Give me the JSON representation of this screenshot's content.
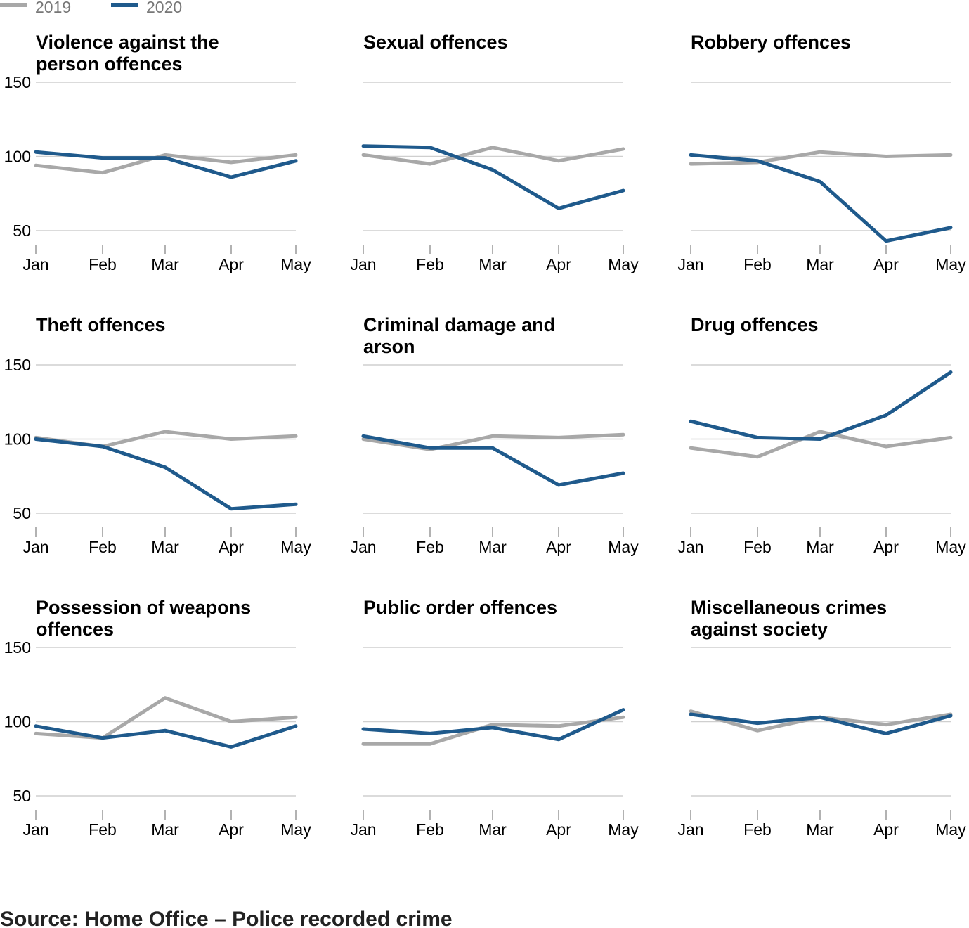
{
  "legend": [
    {
      "label": "2019",
      "color": "#a8a8a8"
    },
    {
      "label": "2020",
      "color": "#1f5a8c"
    }
  ],
  "source": "Source: Home Office – Police recorded crime",
  "chart_data": {
    "type": "line",
    "layout": "small-multiples",
    "x": [
      "Jan",
      "Feb",
      "Mar",
      "Apr",
      "May"
    ],
    "yticks": [
      50,
      100,
      150
    ],
    "ylim": [
      50,
      150
    ],
    "grid": true,
    "legend_position": "top-left",
    "panels": [
      {
        "title": [
          "Violence against the",
          "person offences"
        ],
        "show_yticks": true,
        "series": [
          {
            "name": "2019",
            "values": [
              94,
              89,
              101,
              96,
              101
            ]
          },
          {
            "name": "2020",
            "values": [
              103,
              99,
              99,
              86,
              97
            ]
          }
        ]
      },
      {
        "title": [
          "Sexual offences"
        ],
        "show_yticks": false,
        "series": [
          {
            "name": "2019",
            "values": [
              101,
              95,
              106,
              97,
              105
            ]
          },
          {
            "name": "2020",
            "values": [
              107,
              106,
              91,
              65,
              77
            ]
          }
        ]
      },
      {
        "title": [
          "Robbery offences"
        ],
        "show_yticks": false,
        "series": [
          {
            "name": "2019",
            "values": [
              95,
              96,
              103,
              100,
              101
            ]
          },
          {
            "name": "2020",
            "values": [
              101,
              97,
              83,
              43,
              52
            ]
          }
        ]
      },
      {
        "title": [
          "Theft offences"
        ],
        "show_yticks": true,
        "series": [
          {
            "name": "2019",
            "values": [
              101,
              95,
              105,
              100,
              102
            ]
          },
          {
            "name": "2020",
            "values": [
              100,
              95,
              81,
              53,
              56
            ]
          }
        ]
      },
      {
        "title": [
          "Criminal damage and",
          "arson"
        ],
        "show_yticks": false,
        "series": [
          {
            "name": "2019",
            "values": [
              100,
              93,
              102,
              101,
              103
            ]
          },
          {
            "name": "2020",
            "values": [
              102,
              94,
              94,
              69,
              77
            ]
          }
        ]
      },
      {
        "title": [
          "Drug offences"
        ],
        "show_yticks": false,
        "series": [
          {
            "name": "2019",
            "values": [
              94,
              88,
              105,
              95,
              101
            ]
          },
          {
            "name": "2020",
            "values": [
              112,
              101,
              100,
              116,
              145
            ]
          }
        ]
      },
      {
        "title": [
          "Possession of weapons",
          "offences"
        ],
        "show_yticks": true,
        "series": [
          {
            "name": "2019",
            "values": [
              92,
              89,
              116,
              100,
              103
            ]
          },
          {
            "name": "2020",
            "values": [
              97,
              89,
              94,
              83,
              97
            ]
          }
        ]
      },
      {
        "title": [
          "Public order offences"
        ],
        "show_yticks": false,
        "series": [
          {
            "name": "2019",
            "values": [
              85,
              85,
              98,
              97,
              103
            ]
          },
          {
            "name": "2020",
            "values": [
              95,
              92,
              96,
              88,
              108
            ]
          }
        ]
      },
      {
        "title": [
          "Miscellaneous crimes",
          "against society"
        ],
        "show_yticks": false,
        "series": [
          {
            "name": "2019",
            "values": [
              107,
              94,
              103,
              98,
              105
            ]
          },
          {
            "name": "2020",
            "values": [
              105,
              99,
              103,
              92,
              104
            ]
          }
        ]
      }
    ]
  }
}
